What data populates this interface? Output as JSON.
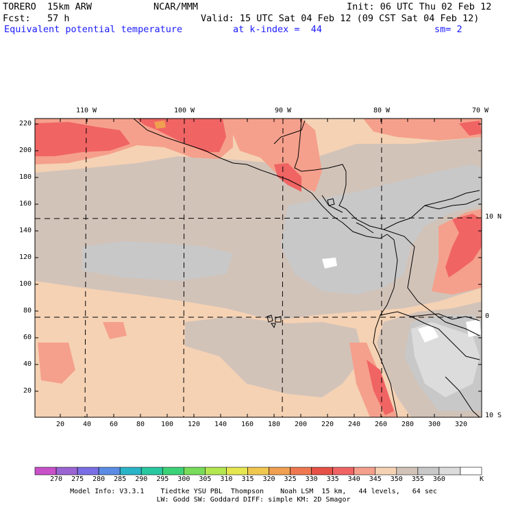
{
  "header": {
    "model": "TORERO  15km ARW",
    "center": "NCAR/MMM",
    "init": "Init: 06 UTC Thu 02 Feb 12",
    "fcst": "Fcst:   57 h",
    "valid": "Valid: 15 UTC Sat 04 Feb 12 (09 CST Sat 04 Feb 12)",
    "field": "Equivalent potential temperature",
    "level": "at k-index =  44",
    "smoothing": "sm= 2"
  },
  "axes": {
    "top_lon_labels": [
      "110 W",
      "100 W",
      "90 W",
      "80 W",
      "70 W"
    ],
    "left_grid_labels": [
      "220",
      "200",
      "180",
      "160",
      "140",
      "120",
      "100",
      "80",
      "60",
      "40",
      "20"
    ],
    "bottom_grid_labels": [
      "20",
      "40",
      "60",
      "80",
      "100",
      "120",
      "140",
      "160",
      "180",
      "200",
      "220",
      "240",
      "260",
      "280",
      "300",
      "320"
    ],
    "right_lat_labels": [
      "10 N",
      "0",
      "10 S"
    ]
  },
  "colorbar": {
    "labels": [
      "270",
      "275",
      "280",
      "285",
      "290",
      "295",
      "300",
      "305",
      "310",
      "315",
      "320",
      "325",
      "330",
      "335",
      "340",
      "345",
      "350",
      "355",
      "360"
    ],
    "unit": "K",
    "colors": [
      "#c850c8",
      "#9a64d2",
      "#7a6ee6",
      "#5a8ce6",
      "#2ab4c8",
      "#28c8a0",
      "#3cd278",
      "#78dc5a",
      "#b4e650",
      "#e6e650",
      "#f0c850",
      "#f0a050",
      "#f07850",
      "#e65046",
      "#f06464",
      "#f5a08c",
      "#f5d2b4",
      "#d2c3b9",
      "#c8c8c8",
      "#dcdcdc",
      "#ffffff"
    ]
  },
  "field_colors": {
    "hot": "#f06464",
    "warm": "#f5a08c",
    "tan": "#f5d2b4",
    "taupe": "#d2c3b9",
    "gray": "#c8c8c8",
    "light": "#dcdcdc",
    "white": "#ffffff",
    "orange": "#f0a050"
  },
  "footer": {
    "line1": "Model Info: V3.3.1    Tiedtke YSU PBL  Thompson    Noah LSM  15 km,   44 levels,   64 sec",
    "line2": "LW: Godd SW: Goddard DIFF: simple KM: 2D Smagor"
  }
}
